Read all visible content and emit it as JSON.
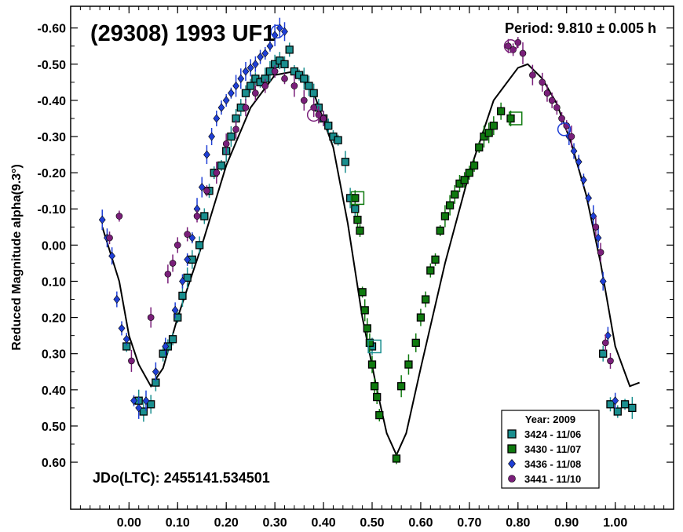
{
  "chart_data": {
    "type": "scatter",
    "title": "(29308) 1993 UF1",
    "period_label": "Period: 9.810 ± 0.005 h",
    "epoch_label": "JDo(LTC): 2455141.534501",
    "ylabel": "Reduced Magnitude alpha(9.3°)",
    "xlabel": "",
    "xlim": [
      -0.12,
      1.12
    ],
    "ylim": [
      -0.66,
      0.73
    ],
    "y_inverted": true,
    "x_ticks": [
      "0.00",
      "0.10",
      "0.20",
      "0.30",
      "0.40",
      "0.50",
      "0.60",
      "0.70",
      "0.80",
      "0.90",
      "1.00"
    ],
    "y_ticks": [
      "-0.60",
      "-0.50",
      "-0.40",
      "-0.30",
      "-0.20",
      "-0.10",
      "0.00",
      "0.10",
      "0.20",
      "0.30",
      "0.40",
      "0.50",
      "0.60"
    ],
    "grid": false,
    "legend_position": "bottom-right",
    "legend_title": "Year: 2009",
    "series": [
      {
        "name": "3424 - 11/06",
        "marker": "square",
        "color": "#1a8f8f",
        "x": [
          -0.005,
          0.02,
          0.03,
          0.045,
          0.055,
          0.07,
          0.08,
          0.09,
          0.1,
          0.11,
          0.12,
          0.13,
          0.145,
          0.155,
          0.165,
          0.175,
          0.19,
          0.2,
          0.21,
          0.22,
          0.23,
          0.24,
          0.25,
          0.26,
          0.27,
          0.28,
          0.29,
          0.3,
          0.31,
          0.32,
          0.33,
          0.34,
          0.35,
          0.36,
          0.37,
          0.38,
          0.39,
          0.4,
          0.41,
          0.42,
          0.43,
          0.445,
          0.455,
          0.465,
          0.5,
          0.975,
          0.99,
          1.005,
          1.02,
          1.035
        ],
        "y": [
          0.28,
          0.43,
          0.46,
          0.44,
          0.38,
          0.3,
          0.28,
          0.26,
          0.2,
          0.14,
          0.09,
          0.04,
          0.0,
          -0.08,
          -0.15,
          -0.2,
          -0.22,
          -0.26,
          -0.3,
          -0.35,
          -0.38,
          -0.42,
          -0.44,
          -0.46,
          -0.45,
          -0.46,
          -0.48,
          -0.5,
          -0.51,
          -0.5,
          -0.54,
          -0.48,
          -0.47,
          -0.46,
          -0.44,
          -0.42,
          -0.38,
          -0.35,
          -0.33,
          -0.3,
          -0.29,
          -0.23,
          -0.13,
          -0.1,
          0.28,
          0.3,
          0.44,
          0.46,
          0.44,
          0.45
        ]
      },
      {
        "name": "3430 - 11/07",
        "marker": "square",
        "color": "#0f7a0f",
        "x": [
          0.465,
          0.47,
          0.475,
          0.48,
          0.485,
          0.49,
          0.495,
          0.5,
          0.505,
          0.51,
          0.515,
          0.55,
          0.56,
          0.575,
          0.59,
          0.6,
          0.61,
          0.62,
          0.63,
          0.64,
          0.65,
          0.66,
          0.67,
          0.68,
          0.69,
          0.7,
          0.71,
          0.72,
          0.73,
          0.74,
          0.75,
          0.765,
          0.785
        ],
        "y": [
          -0.13,
          -0.07,
          -0.04,
          0.13,
          0.18,
          0.23,
          0.27,
          0.33,
          0.39,
          0.42,
          0.47,
          0.59,
          0.39,
          0.33,
          0.27,
          0.2,
          0.15,
          0.07,
          0.04,
          -0.04,
          -0.08,
          -0.11,
          -0.14,
          -0.17,
          -0.18,
          -0.2,
          -0.22,
          -0.27,
          -0.3,
          -0.31,
          -0.33,
          -0.37,
          -0.35
        ]
      },
      {
        "name": "3436 - 11/08",
        "marker": "diamond",
        "color": "#1f3fd6",
        "x": [
          -0.055,
          -0.045,
          -0.035,
          -0.025,
          -0.015,
          -0.005,
          0.01,
          0.02,
          0.035,
          0.055,
          0.075,
          0.095,
          0.11,
          0.12,
          0.13,
          0.14,
          0.15,
          0.16,
          0.17,
          0.18,
          0.19,
          0.2,
          0.21,
          0.22,
          0.23,
          0.24,
          0.25,
          0.26,
          0.27,
          0.28,
          0.29,
          0.3,
          0.31,
          0.32,
          0.905,
          0.915,
          0.925,
          0.935,
          0.945,
          0.955,
          0.965,
          0.975,
          0.985,
          1.0
        ],
        "y": [
          -0.07,
          -0.02,
          0.03,
          0.15,
          0.23,
          0.26,
          0.43,
          0.45,
          0.43,
          0.35,
          0.28,
          0.18,
          0.1,
          0.04,
          -0.02,
          -0.1,
          -0.16,
          -0.25,
          -0.3,
          -0.35,
          -0.38,
          -0.4,
          -0.42,
          -0.44,
          -0.46,
          -0.48,
          -0.49,
          -0.5,
          -0.52,
          -0.53,
          -0.55,
          -0.58,
          -0.6,
          -0.59,
          -0.3,
          -0.26,
          -0.23,
          -0.18,
          -0.13,
          -0.08,
          -0.02,
          0.1,
          0.25,
          0.43
        ]
      },
      {
        "name": "3441 - 11/10",
        "marker": "circle",
        "color": "#7a1f7a",
        "x": [
          -0.04,
          -0.02,
          0.005,
          0.045,
          0.08,
          0.09,
          0.1,
          0.12,
          0.14,
          0.16,
          0.18,
          0.2,
          0.22,
          0.24,
          0.26,
          0.28,
          0.3,
          0.32,
          0.34,
          0.36,
          0.38,
          0.39,
          0.4,
          0.78,
          0.79,
          0.8,
          0.81,
          0.83,
          0.85,
          0.86,
          0.87,
          0.88,
          0.89,
          0.9,
          0.91,
          0.96,
          0.97,
          0.98,
          0.99
        ],
        "y": [
          -0.02,
          -0.08,
          0.32,
          0.2,
          0.08,
          0.05,
          0.0,
          -0.03,
          -0.08,
          -0.15,
          -0.2,
          -0.28,
          -0.32,
          -0.38,
          -0.42,
          -0.44,
          -0.48,
          -0.46,
          -0.44,
          -0.4,
          -0.38,
          -0.36,
          -0.35,
          -0.55,
          -0.54,
          -0.56,
          -0.53,
          -0.47,
          -0.45,
          -0.42,
          -0.4,
          -0.38,
          -0.35,
          -0.33,
          -0.3,
          -0.05,
          0.02,
          0.27,
          0.32
        ]
      }
    ],
    "fit_curve": {
      "x": [
        -0.055,
        -0.02,
        0.0,
        0.02,
        0.045,
        0.07,
        0.1,
        0.15,
        0.2,
        0.25,
        0.3,
        0.34,
        0.38,
        0.42,
        0.45,
        0.48,
        0.51,
        0.53,
        0.55,
        0.57,
        0.6,
        0.65,
        0.7,
        0.75,
        0.8,
        0.82,
        0.85,
        0.88,
        0.91,
        0.94,
        0.97,
        1.0,
        1.03,
        1.05
      ],
      "y": [
        -0.05,
        0.1,
        0.25,
        0.33,
        0.39,
        0.34,
        0.2,
        0.0,
        -0.22,
        -0.38,
        -0.47,
        -0.48,
        -0.42,
        -0.27,
        -0.06,
        0.2,
        0.4,
        0.52,
        0.58,
        0.52,
        0.34,
        0.05,
        -0.2,
        -0.4,
        -0.49,
        -0.5,
        -0.46,
        -0.39,
        -0.28,
        -0.14,
        0.05,
        0.28,
        0.39,
        0.38
      ]
    },
    "open_markers": [
      {
        "series": 0,
        "x": 0.505,
        "y": 0.28
      },
      {
        "series": 1,
        "x": 0.47,
        "y": -0.13
      },
      {
        "series": 1,
        "x": 0.795,
        "y": -0.35
      },
      {
        "series": 2,
        "x": 0.305,
        "y": -0.59
      },
      {
        "series": 2,
        "x": 0.895,
        "y": -0.32
      },
      {
        "series": 3,
        "x": 0.785,
        "y": -0.55
      },
      {
        "series": 3,
        "x": 0.38,
        "y": -0.36
      }
    ]
  }
}
